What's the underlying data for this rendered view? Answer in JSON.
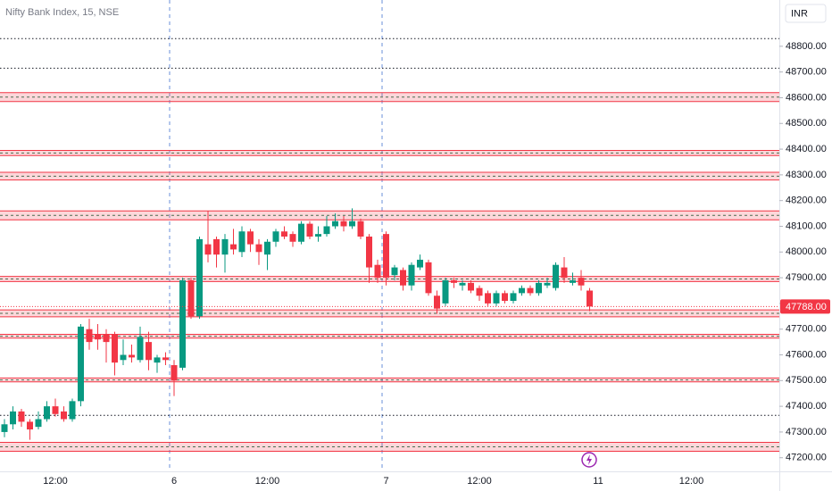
{
  "chart_data": {
    "type": "candlestick",
    "title": "Nifty Bank Index, 15, NSE",
    "currency": "INR",
    "categories": [
      null,
      null,
      null,
      null,
      null,
      null,
      "12:00",
      null,
      null,
      null,
      null,
      null,
      null,
      null,
      null,
      null,
      null,
      null,
      null,
      null,
      "6",
      null,
      null,
      null,
      null,
      null,
      null,
      null,
      null,
      null,
      null,
      "12:00",
      null,
      null,
      null,
      null,
      null,
      null,
      null,
      null,
      null,
      null,
      null,
      null,
      null,
      "7",
      null,
      null,
      null,
      null,
      null,
      null,
      null,
      null,
      null,
      null,
      "12:00",
      null,
      null,
      null,
      null,
      null,
      null,
      null,
      null,
      null,
      null,
      null,
      null,
      null,
      "11",
      null,
      null,
      null,
      null,
      null,
      null,
      null,
      null,
      null,
      null,
      "12:00",
      null,
      null,
      null,
      null,
      null,
      null,
      null,
      null,
      null
    ],
    "open": [
      47300,
      47330,
      47380,
      47340,
      47320,
      47350,
      47400,
      47380,
      47350,
      47420,
      47700,
      47680,
      47680,
      47680,
      47580,
      47600,
      47580,
      47650,
      47570,
      47590,
      47560,
      47550,
      47890,
      47750,
      48030,
      48050,
      47990,
      48030,
      48000,
      48080,
      48030,
      47990,
      48040,
      48080,
      48070,
      48040,
      48110,
      48060,
      48070,
      48100,
      48120,
      48100,
      48120,
      48060,
      47950,
      48070,
      47910,
      47930,
      47870,
      47940,
      47960,
      47830,
      47800,
      47890,
      47870,
      47880,
      47860,
      47840,
      47800,
      47840,
      47810,
      47840,
      47860,
      47840,
      47870,
      47860,
      47940,
      47880,
      47900,
      47850,
      null,
      null,
      null,
      null,
      null,
      null,
      null,
      null,
      null,
      null,
      null,
      null,
      null,
      null,
      null,
      null,
      null,
      null,
      null,
      null,
      null
    ],
    "high": [
      47350,
      47400,
      47390,
      47350,
      47380,
      47420,
      47430,
      47400,
      47430,
      47720,
      47740,
      47720,
      47700,
      47690,
      47660,
      47640,
      47710,
      47690,
      47600,
      47610,
      47580,
      47900,
      47900,
      48060,
      48160,
      48060,
      48070,
      48090,
      48100,
      48090,
      48050,
      48050,
      48090,
      48100,
      48080,
      48120,
      48120,
      48100,
      48140,
      48150,
      48140,
      48170,
      48130,
      48070,
      47970,
      48080,
      47950,
      47940,
      47960,
      47990,
      47970,
      47850,
      47900,
      47900,
      47890,
      47890,
      47870,
      47850,
      47850,
      47850,
      47850,
      47870,
      47870,
      47890,
      47900,
      47960,
      47980,
      47920,
      47930,
      47860,
      null,
      null,
      null,
      null,
      null,
      null,
      null,
      null,
      null,
      null,
      null,
      null,
      null,
      null,
      null,
      null,
      null,
      null,
      null,
      null,
      null
    ],
    "low": [
      47280,
      47310,
      47320,
      47270,
      47310,
      47340,
      47360,
      47340,
      47340,
      47400,
      47620,
      47620,
      47570,
      47520,
      47560,
      47570,
      47570,
      47540,
      47530,
      47560,
      47440,
      47540,
      47740,
      47740,
      47960,
      47940,
      47920,
      47990,
      47980,
      48000,
      47950,
      47930,
      48020,
      48050,
      48020,
      48030,
      48050,
      48040,
      48060,
      48090,
      48080,
      48090,
      48050,
      47880,
      47880,
      47870,
      47890,
      47850,
      47850,
      47930,
      47830,
      47760,
      47790,
      47860,
      47850,
      47840,
      47810,
      47790,
      47790,
      47800,
      47800,
      47830,
      47830,
      47830,
      47860,
      47850,
      47880,
      47870,
      47850,
      47770,
      null,
      null,
      null,
      null,
      null,
      null,
      null,
      null,
      null,
      null,
      null,
      null,
      null,
      null,
      null,
      null,
      null,
      null,
      null,
      null,
      null
    ],
    "close": [
      47330,
      47380,
      47340,
      47310,
      47350,
      47400,
      47370,
      47350,
      47420,
      47710,
      47650,
      47660,
      47650,
      47570,
      47600,
      47590,
      47670,
      47580,
      47590,
      47580,
      47500,
      47890,
      47750,
      48050,
      47990,
      47990,
      48050,
      48010,
      48080,
      48030,
      48000,
      48040,
      48080,
      48060,
      48040,
      48110,
      48060,
      48070,
      48100,
      48120,
      48100,
      48120,
      48060,
      47940,
      47900,
      47900,
      47940,
      47870,
      47950,
      47970,
      47840,
      47780,
      47890,
      47880,
      47880,
      47850,
      47830,
      47800,
      47840,
      47810,
      47840,
      47860,
      47840,
      47880,
      47880,
      47950,
      47900,
      47890,
      47870,
      47788,
      null,
      null,
      null,
      null,
      null,
      null,
      null,
      null,
      null,
      null,
      null,
      null,
      null,
      null,
      null,
      null,
      null,
      null,
      null,
      null,
      null
    ],
    "up_color": "#089981",
    "down_color": "#f23645",
    "ylim": [
      47147,
      48980
    ],
    "yticks": [
      {
        "value": 47200,
        "label": "47200.00"
      },
      {
        "value": 47300,
        "label": "47300.00"
      },
      {
        "value": 47400,
        "label": "47400.00"
      },
      {
        "value": 47500,
        "label": "47500.00"
      },
      {
        "value": 47600,
        "label": "47600.00"
      },
      {
        "value": 47700,
        "label": "47700.00"
      },
      {
        "value": 47800,
        "label": "47800.00"
      },
      {
        "value": 47900,
        "label": "47900.00"
      },
      {
        "value": 48000,
        "label": "48000.00"
      },
      {
        "value": 48100,
        "label": "48100.00"
      },
      {
        "value": 48200,
        "label": "48200.00"
      },
      {
        "value": 48300,
        "label": "48300.00"
      },
      {
        "value": 48400,
        "label": "48400.00"
      },
      {
        "value": 48500,
        "label": "48500.00"
      },
      {
        "value": 48600,
        "label": "48600.00"
      },
      {
        "value": 48700,
        "label": "48700.00"
      },
      {
        "value": 48800,
        "label": "48800.00"
      }
    ],
    "last_price": {
      "value": 47788,
      "label": "47788.00"
    },
    "zones": [
      [
        48585,
        48620
      ],
      [
        48375,
        48395
      ],
      [
        48280,
        48310
      ],
      [
        48125,
        48160
      ],
      [
        47885,
        47905
      ],
      [
        47748,
        47775
      ],
      [
        47665,
        47680
      ],
      [
        47495,
        47510
      ],
      [
        47225,
        47260
      ]
    ],
    "levels": [
      48830,
      48715,
      47365
    ]
  }
}
